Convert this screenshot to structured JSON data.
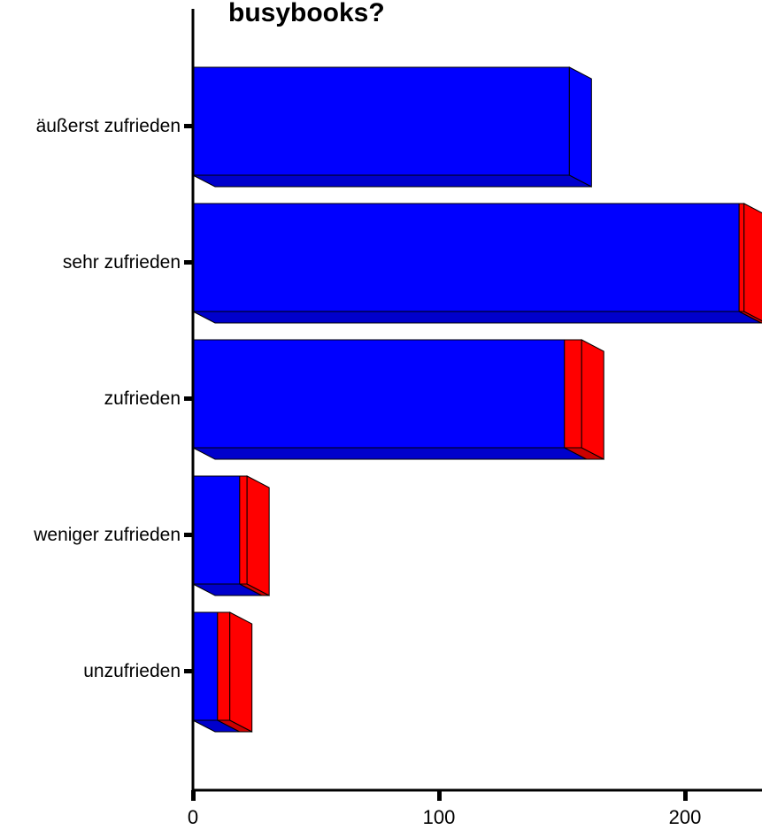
{
  "chart_data": {
    "type": "bar",
    "orientation": "horizontal",
    "stacked": true,
    "style": "3d",
    "title": "busybooks?",
    "categories": [
      "äußerst zufrieden",
      "sehr zufrieden",
      "zufrieden",
      "weniger zufrieden",
      "unzufrieden"
    ],
    "series": [
      {
        "color": "#0000ff",
        "values": [
          153,
          222,
          151,
          19,
          10
        ]
      },
      {
        "color": "#ff0000",
        "values": [
          0,
          2,
          7,
          3,
          5
        ]
      }
    ],
    "xlim": [
      0,
      230
    ],
    "xticks": [
      "0",
      "100",
      "200"
    ],
    "xtick_values": [
      0,
      100,
      200
    ],
    "xlabel": "",
    "ylabel": "",
    "grid": false,
    "legend": "none"
  }
}
